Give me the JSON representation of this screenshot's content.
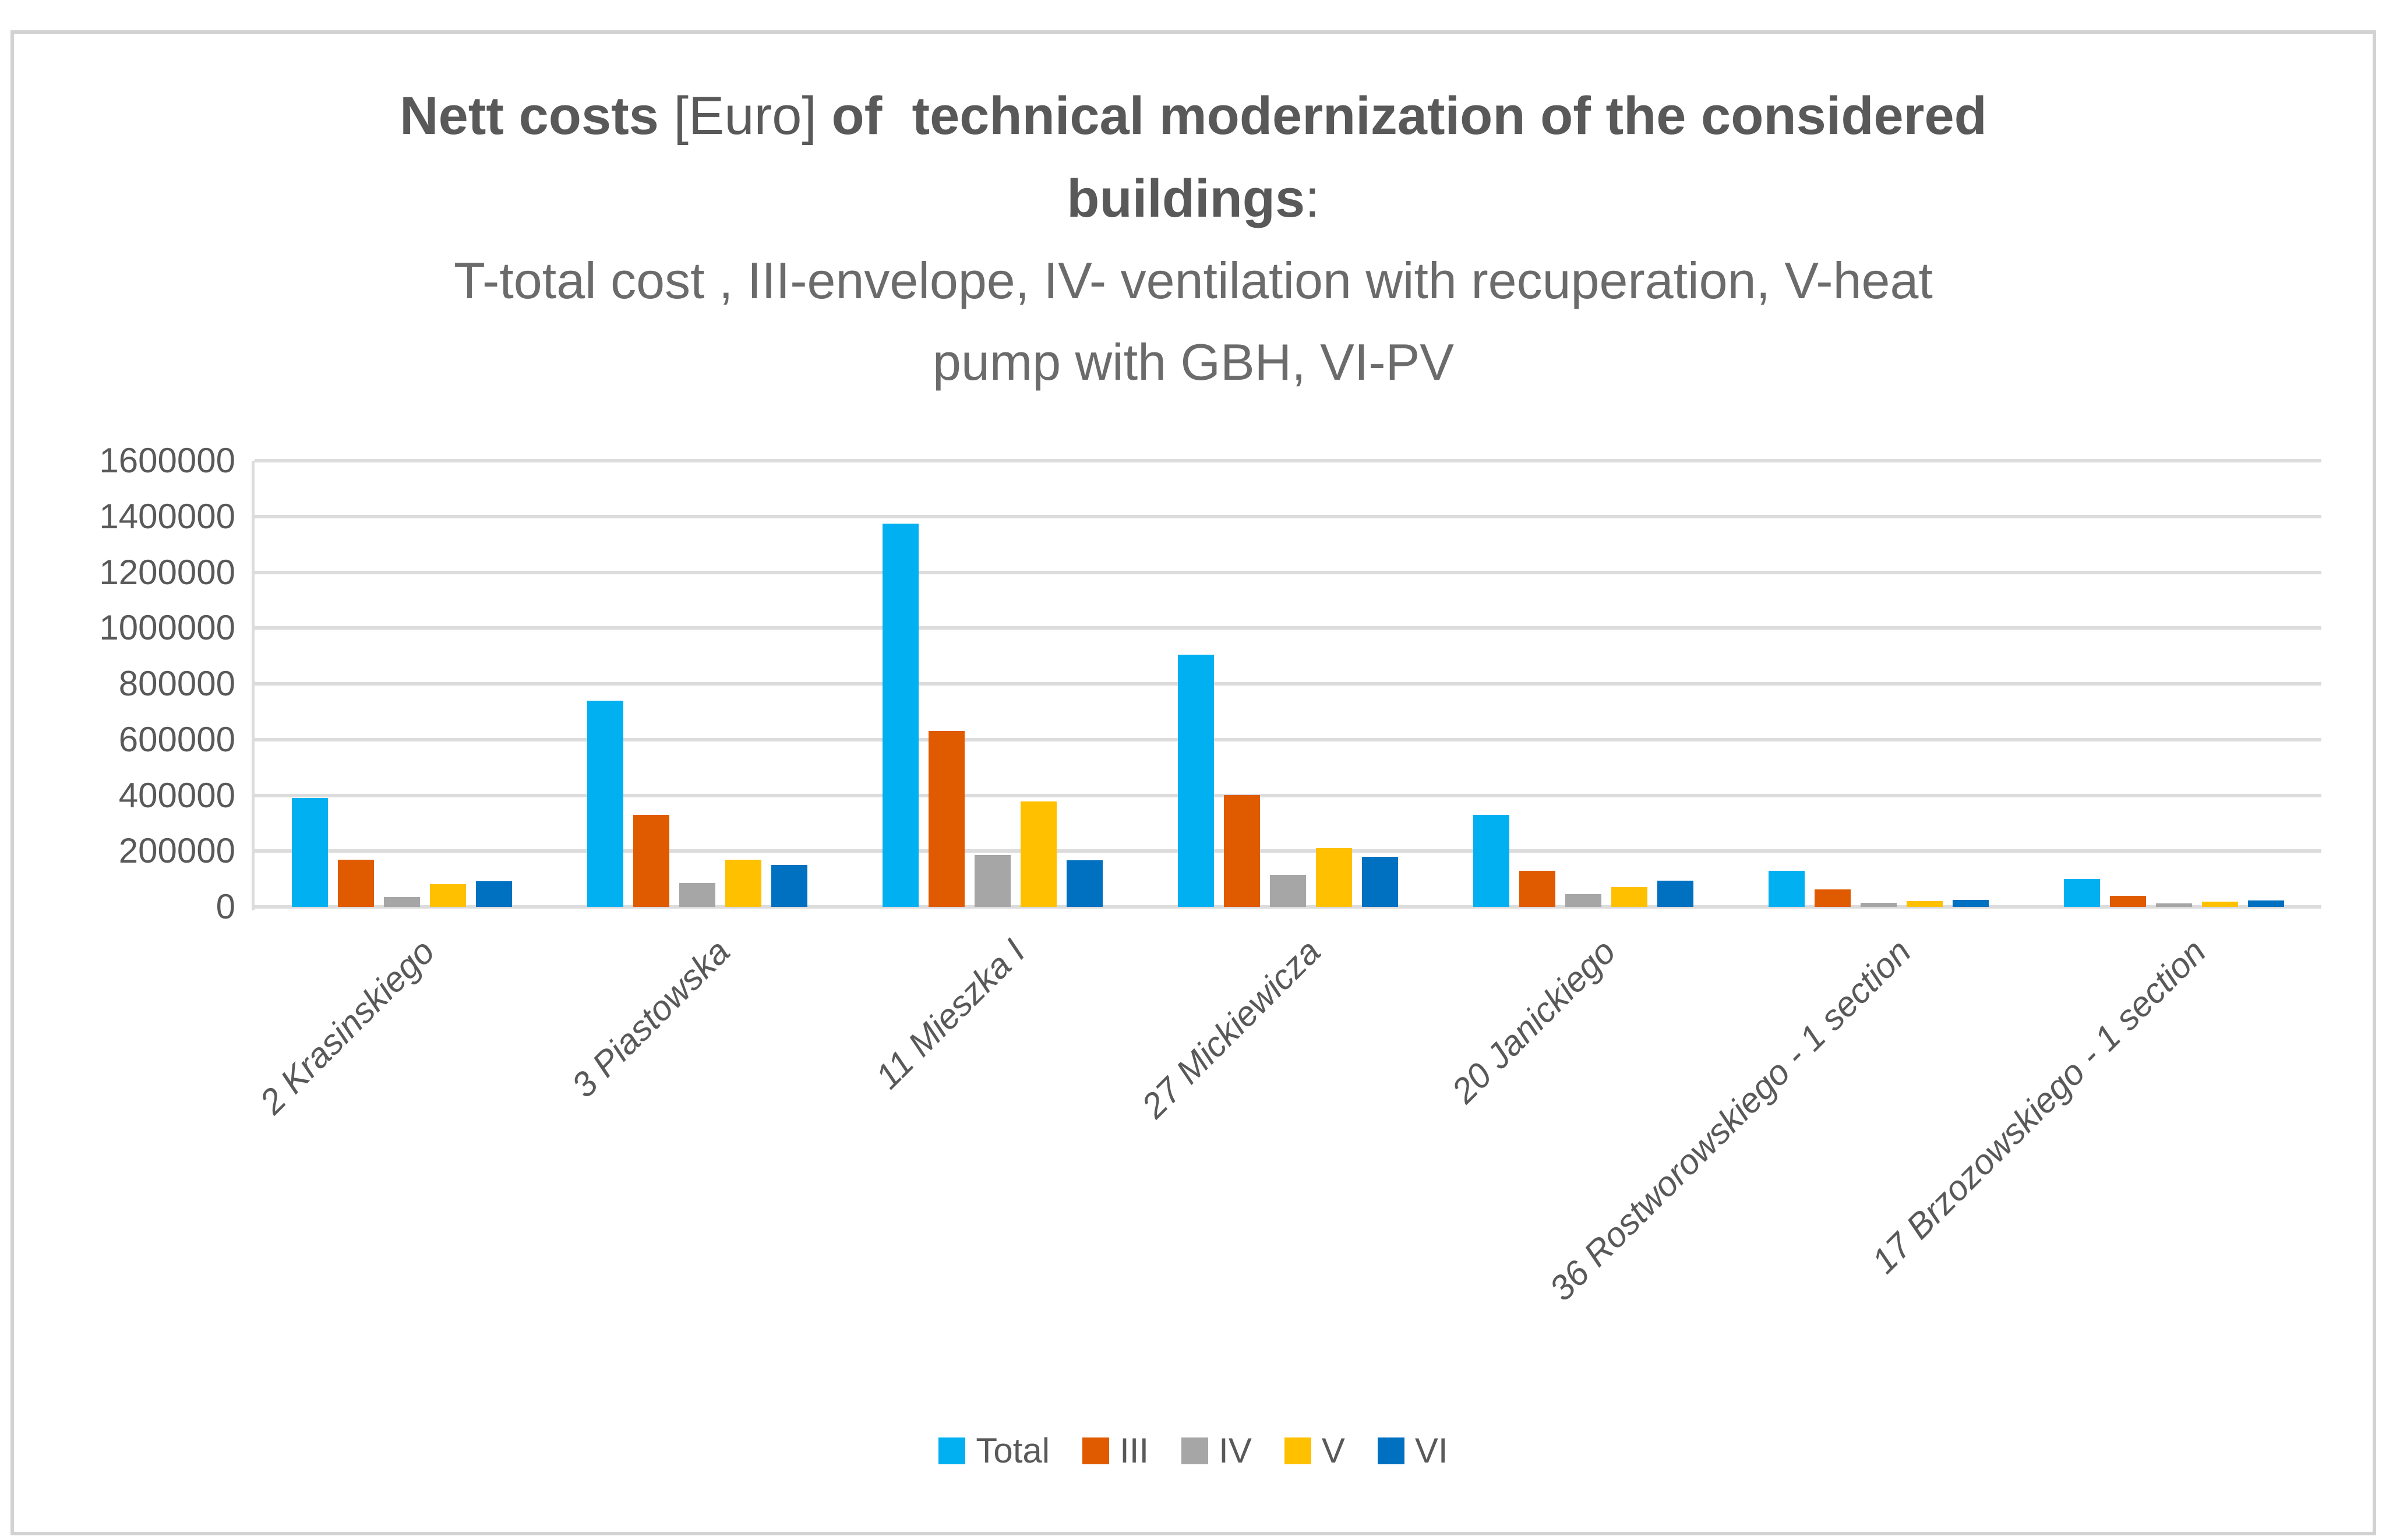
{
  "title": {
    "bold1": "Nett costs",
    "reg1": " [Euro] ",
    "bold2": "of  technical modernization of the considered",
    "bold3": "buildings",
    "reg2": ":"
  },
  "subtitle": {
    "line1": "T-total cost , III-envelope, IV- ventilation with recuperation, V-heat",
    "line2": "pump with GBH, VI-PV"
  },
  "chart_data": {
    "type": "bar",
    "title": "Nett costs [Euro] of technical modernization of the considered buildings: T-total cost , III-envelope, IV- ventilation with recuperation, V-heat pump with GBH, VI-PV",
    "categories": [
      "2 Krasinskiego",
      "3 Piastowska",
      "11 Mieszka I",
      "27 Mickiewicza",
      "20 Janickiego",
      "36 Rostworowskiego - 1 section",
      "17 Brzozowskiego - 1 section"
    ],
    "series": [
      {
        "name": "Total",
        "color": "#00B0F0",
        "values": [
          390000,
          740000,
          1375000,
          905000,
          330000,
          130000,
          100000
        ]
      },
      {
        "name": "III",
        "color": "#E05A00",
        "values": [
          170000,
          330000,
          630000,
          400000,
          130000,
          62000,
          40000
        ]
      },
      {
        "name": "IV",
        "color": "#A6A6A6",
        "values": [
          36000,
          85000,
          185000,
          115000,
          45000,
          15000,
          12000
        ]
      },
      {
        "name": "V",
        "color": "#FFC000",
        "values": [
          81000,
          170000,
          378000,
          210000,
          70000,
          21000,
          18000
        ]
      },
      {
        "name": "VI",
        "color": "#0070C0",
        "values": [
          92000,
          150000,
          167000,
          180000,
          95000,
          26000,
          24000
        ]
      }
    ],
    "ylim": [
      0,
      1600000
    ],
    "yticks": [
      0,
      200000,
      400000,
      600000,
      800000,
      1000000,
      1200000,
      1400000,
      1600000
    ],
    "xlabel": "",
    "ylabel": "",
    "grid": true,
    "legend_position": "bottom"
  },
  "colors": {
    "text": "#595959",
    "subtitle_text": "#6b6b6b",
    "gridline": "#DCDCDC",
    "frame_border": "#D2D2D2",
    "background": "#ffffff"
  }
}
